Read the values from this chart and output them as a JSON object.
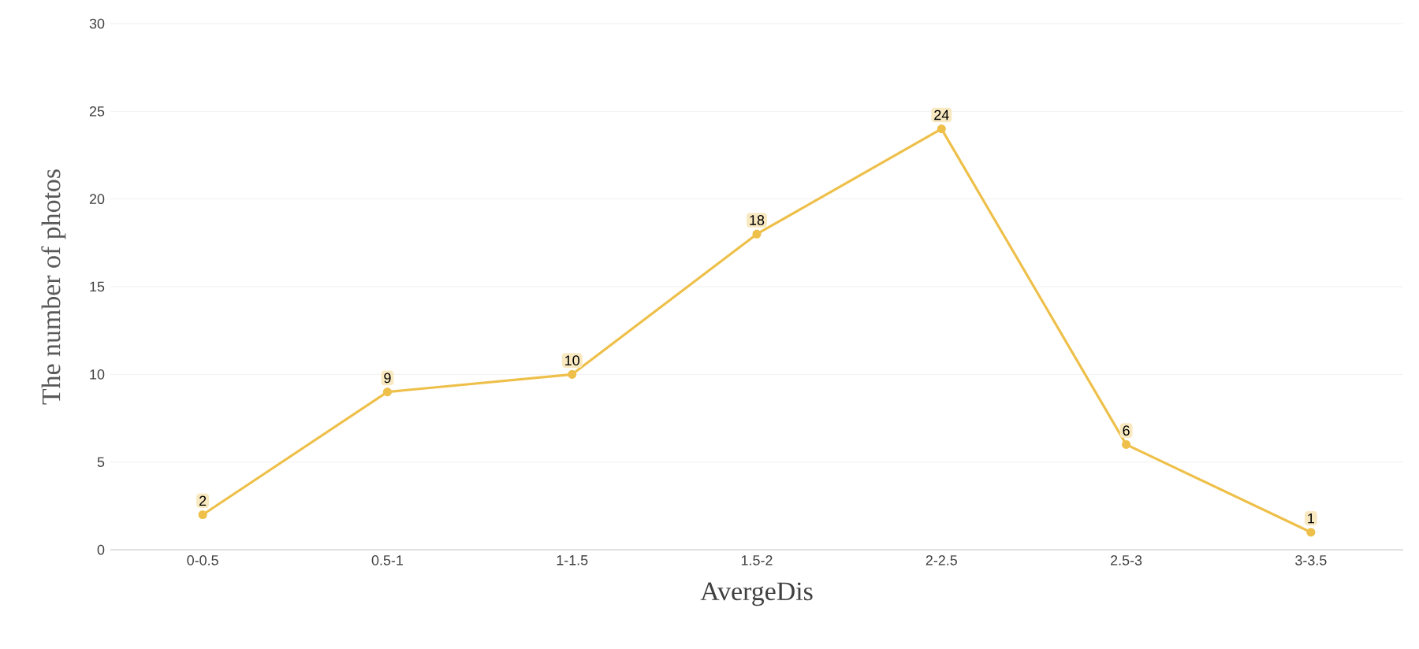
{
  "chart_data": {
    "type": "line",
    "xlabel": "AvergeDis",
    "ylabel": "The number of photos",
    "categories": [
      "0-0.5",
      "0.5-1",
      "1-1.5",
      "1.5-2",
      "2-2.5",
      "2.5-3",
      "3-3.5"
    ],
    "series": [
      {
        "color": "#eec04a",
        "values": [
          2,
          9,
          10,
          18,
          24,
          6,
          1
        ],
        "value_labels": [
          "2",
          "9",
          "10",
          "18",
          "24",
          "6",
          "1"
        ]
      }
    ],
    "ylim": [
      0,
      30
    ],
    "yticks": [
      0,
      5,
      10,
      15,
      20,
      25,
      30
    ],
    "grid": "y",
    "marker": "circle",
    "line_style": "solid"
  }
}
